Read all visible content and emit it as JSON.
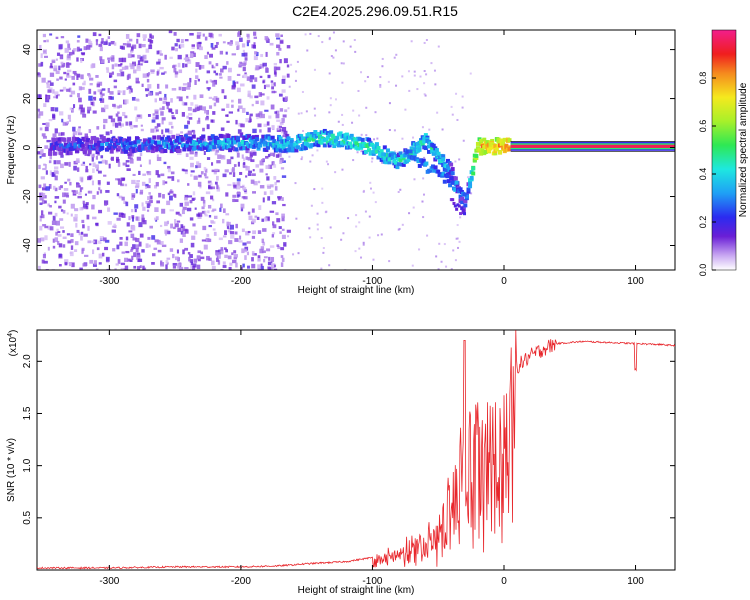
{
  "figure_title": "C2E4.2025.296.09.51.R15",
  "chart_data": [
    {
      "type": "heatmap",
      "title": "C2E4.2025.296.09.51.R15",
      "xlabel": "Height of straight line (km)",
      "ylabel": "Frequency (Hz)",
      "xlim": [
        -355,
        130
      ],
      "ylim": [
        -50,
        48
      ],
      "x_ticks": [
        -300,
        -200,
        -100,
        0,
        100
      ],
      "y_ticks": [
        -40,
        -20,
        0,
        20,
        40
      ],
      "x_tick_labels": [
        "-300",
        "-200",
        "-100",
        "0",
        "100"
      ],
      "y_tick_labels": [
        "-40",
        "-20",
        "0",
        "20",
        "40"
      ],
      "colorbar": {
        "label": "Normalized spectral amplitude",
        "range": [
          0,
          1
        ],
        "ticks": [
          0.0,
          0.2,
          0.4,
          0.6,
          0.8
        ],
        "tick_labels": [
          "0.0",
          "0.2",
          "0.4",
          "0.6",
          "0.8"
        ],
        "colormap": "white-purple-blue-cyan-green-yellow-red-magenta"
      },
      "ridge": {
        "description_points": [
          {
            "x": -340,
            "y": 0.5,
            "amp": 0.2
          },
          {
            "x": -300,
            "y": 1.0,
            "amp": 0.25
          },
          {
            "x": -250,
            "y": 1.5,
            "amp": 0.3
          },
          {
            "x": -200,
            "y": 2.0,
            "amp": 0.35
          },
          {
            "x": -160,
            "y": 1.5,
            "amp": 0.4
          },
          {
            "x": -140,
            "y": 4.0,
            "amp": 0.45
          },
          {
            "x": -120,
            "y": 3.0,
            "amp": 0.45
          },
          {
            "x": -100,
            "y": 0.0,
            "amp": 0.45
          },
          {
            "x": -80,
            "y": -6.0,
            "amp": 0.4
          },
          {
            "x": -60,
            "y": 3.0,
            "amp": 0.45
          },
          {
            "x": -40,
            "y": -10.0,
            "amp": 0.3
          },
          {
            "x": -30,
            "y": -25.0,
            "amp": 0.15
          },
          {
            "x": -20,
            "y": 0.5,
            "amp": 0.75
          },
          {
            "x": 0,
            "y": 0.5,
            "amp": 0.8
          },
          {
            "x": 130,
            "y": 0.5,
            "amp": 0.95
          }
        ]
      }
    },
    {
      "type": "line",
      "title": "",
      "xlabel": "Height of straight line (km)",
      "ylabel": "SNR (10 * v/v)",
      "y_multiplier_label": "(x10",
      "y_multiplier_exp": "4",
      "y_multiplier_close": ")",
      "xlim": [
        -355,
        130
      ],
      "ylim": [
        0,
        2.3
      ],
      "x_ticks": [
        -300,
        -200,
        -100,
        0,
        100
      ],
      "y_ticks": [
        0.5,
        1.0,
        1.5,
        2.0
      ],
      "x_tick_labels": [
        "-300",
        "-200",
        "-100",
        "0",
        "100"
      ],
      "y_tick_labels": [
        "0.5",
        "1.0",
        "1.5",
        "2.0"
      ],
      "series": [
        {
          "color": "#e8262b",
          "x": [
            -355,
            -300,
            -250,
            -200,
            -170,
            -150,
            -120,
            -100,
            -80,
            -70,
            -60,
            -50,
            -45,
            -40,
            -35,
            -30,
            -25,
            -20,
            -15,
            -10,
            -5,
            0,
            5,
            10,
            20,
            30,
            40,
            50,
            60,
            80,
            100,
            120,
            130
          ],
          "y": [
            0.02,
            0.02,
            0.03,
            0.03,
            0.04,
            0.06,
            0.08,
            0.12,
            0.18,
            0.25,
            0.3,
            0.45,
            0.6,
            0.8,
            1.0,
            1.2,
            1.3,
            1.35,
            1.4,
            1.45,
            1.45,
            1.55,
            1.8,
            1.95,
            2.05,
            2.12,
            2.17,
            2.18,
            2.19,
            2.18,
            2.17,
            2.16,
            2.15
          ]
        }
      ]
    }
  ]
}
